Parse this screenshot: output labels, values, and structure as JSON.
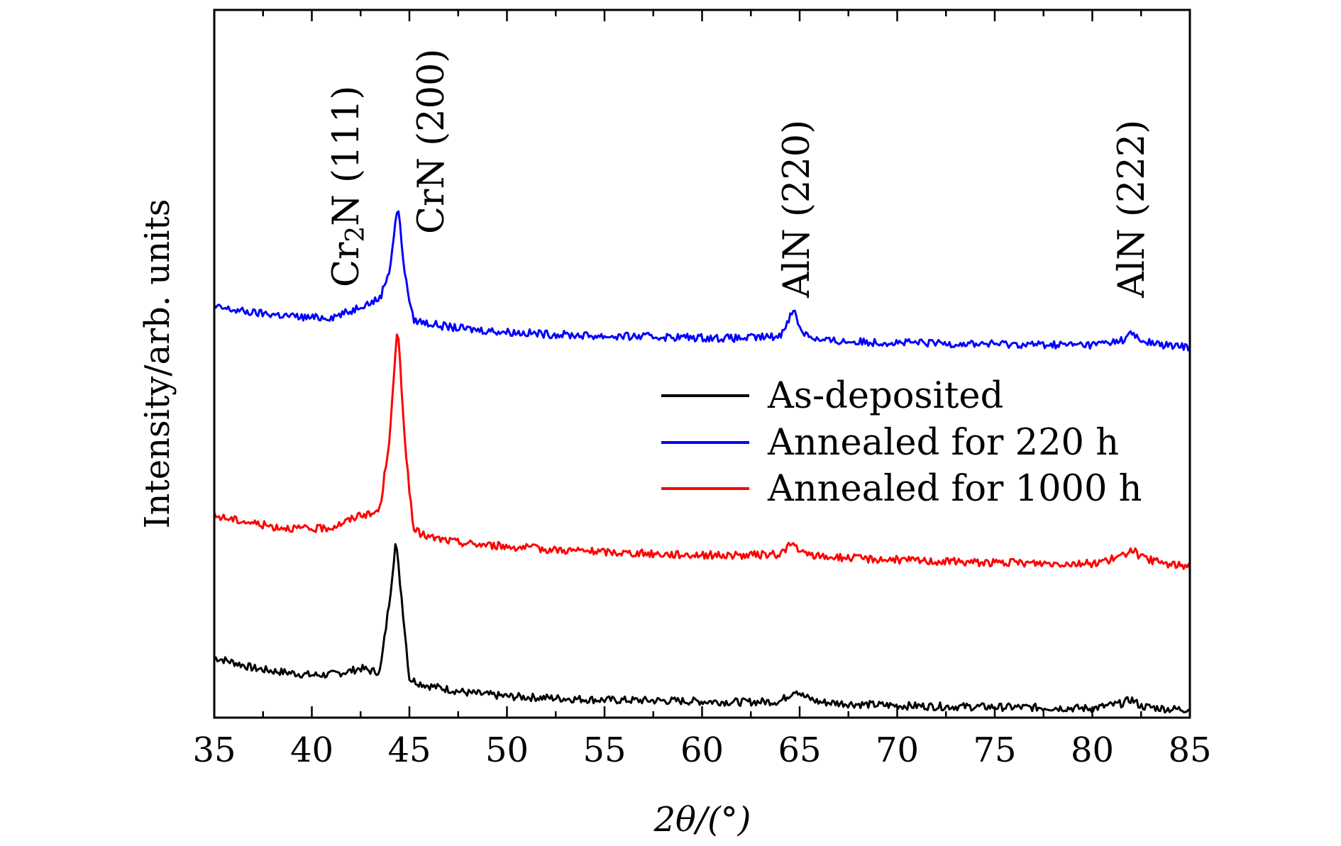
{
  "chart_data": {
    "type": "line",
    "title": "",
    "xlabel": "2θ/(°)",
    "ylabel": "Intensity/arb. units",
    "xlim": [
      35,
      85
    ],
    "x_ticks": [
      35,
      40,
      45,
      50,
      55,
      60,
      65,
      70,
      75,
      80,
      85
    ],
    "x_minor_step": 2.5,
    "y_ticks_labeled": false,
    "ylim": [
      0,
      100
    ],
    "grid": false,
    "legend_position": "center-right",
    "series": [
      {
        "name": "As-deposited",
        "color": "#000000",
        "x": [
          35,
          36,
          37,
          38,
          39,
          40,
          41,
          42,
          42.5,
          43,
          43.5,
          44.0,
          44.3,
          44.6,
          45.0,
          45.5,
          46,
          47,
          48,
          50,
          52,
          55,
          58,
          60,
          62,
          64,
          64.5,
          64.8,
          65.2,
          66,
          68,
          70,
          72,
          75,
          78,
          80,
          81.5,
          82,
          82.5,
          84,
          85
        ],
        "y": [
          8.5,
          7.8,
          7.0,
          6.6,
          6.3,
          6.0,
          6.1,
          6.6,
          7.0,
          6.6,
          6.5,
          17.0,
          25.0,
          17.0,
          5.5,
          4.9,
          4.5,
          4.0,
          3.5,
          3.0,
          2.8,
          2.5,
          2.4,
          2.3,
          2.2,
          2.3,
          3.3,
          4.0,
          3.0,
          2.2,
          1.9,
          1.7,
          1.6,
          1.5,
          1.4,
          1.3,
          2.0,
          2.6,
          1.6,
          1.2,
          1.2
        ]
      },
      {
        "name": "Annealed for 220 h",
        "color": "#0000ff",
        "x": [
          35,
          36,
          37,
          38,
          39,
          40,
          41,
          42,
          42.5,
          43,
          43.5,
          44.0,
          44.4,
          44.8,
          45.2,
          46,
          47,
          48,
          50,
          52,
          55,
          58,
          60,
          62,
          64,
          64.4,
          64.7,
          65.1,
          66,
          68,
          70,
          72,
          75,
          78,
          80,
          81.5,
          82,
          82.5,
          84,
          85
        ],
        "y": [
          58.0,
          57.6,
          57.2,
          57.0,
          56.7,
          56.5,
          56.6,
          57.4,
          58.3,
          58.6,
          59.3,
          63.5,
          72.5,
          62.0,
          56.2,
          55.7,
          55.2,
          54.9,
          54.5,
          54.2,
          53.9,
          53.8,
          53.7,
          53.6,
          53.9,
          56.2,
          57.6,
          54.6,
          53.3,
          53.1,
          53.0,
          52.9,
          52.8,
          52.7,
          52.7,
          53.3,
          54.3,
          53.2,
          52.5,
          52.4
        ]
      },
      {
        "name": "Annealed for 1000 h",
        "color": "#ff0000",
        "x": [
          35,
          36,
          37,
          38,
          39,
          40,
          41,
          42,
          42.5,
          43,
          43.5,
          44.0,
          44.4,
          44.8,
          45.2,
          46,
          47,
          48,
          50,
          52,
          55,
          58,
          60,
          62,
          64,
          64.4,
          64.7,
          65.1,
          66,
          68,
          70,
          72,
          75,
          78,
          80,
          81.5,
          82,
          82.5,
          84,
          85
        ],
        "y": [
          28.5,
          28.0,
          27.5,
          27.0,
          26.8,
          26.6,
          26.9,
          28.0,
          28.8,
          28.6,
          29.5,
          40.0,
          55.5,
          38.0,
          26.5,
          25.5,
          25.0,
          24.6,
          24.2,
          23.8,
          23.4,
          23.1,
          23.0,
          22.9,
          23.1,
          24.2,
          24.5,
          23.2,
          22.8,
          22.5,
          22.3,
          22.1,
          21.9,
          21.8,
          21.8,
          22.7,
          23.9,
          22.6,
          21.6,
          21.5
        ]
      }
    ],
    "annotations": [
      {
        "id": "cr2n",
        "pre": "Cr",
        "sub": "2",
        "post": "N (111)",
        "x": 42.5
      },
      {
        "id": "crn",
        "text": "CrN (200)",
        "x": 46.7
      },
      {
        "id": "aln220",
        "text": "AlN (220)",
        "x": 64.6
      },
      {
        "id": "aln222",
        "text": "AlN (222)",
        "x": 81.8
      }
    ]
  }
}
